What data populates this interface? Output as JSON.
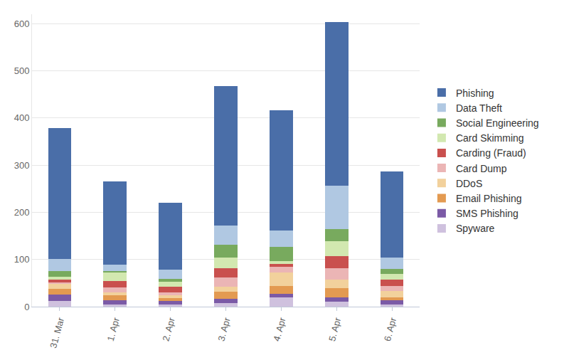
{
  "chart_data": {
    "type": "bar",
    "stacked": true,
    "grid": true,
    "legend": "right",
    "categories": [
      "31. Mar",
      "1. Apr",
      "2. Apr",
      "3. Apr",
      "4. Apr",
      "5. Apr",
      "6. Apr"
    ],
    "ylim": [
      0,
      620
    ],
    "yticks": [
      0,
      100,
      200,
      300,
      400,
      500,
      600
    ],
    "series": [
      {
        "name": "Spyware",
        "color": "#cfc1de",
        "values": [
          12,
          4,
          5,
          7,
          20,
          10,
          5
        ]
      },
      {
        "name": "SMS Phishing",
        "color": "#7b5aa6",
        "values": [
          13,
          10,
          7,
          10,
          7,
          10,
          9
        ]
      },
      {
        "name": "Email Phishing",
        "color": "#e39a51",
        "values": [
          13,
          10,
          6,
          15,
          17,
          19,
          6
        ]
      },
      {
        "name": "DDoS",
        "color": "#f2d19c",
        "values": [
          10,
          6,
          6,
          10,
          28,
          18,
          13
        ]
      },
      {
        "name": "Card Dump",
        "color": "#ebb5b5",
        "values": [
          4,
          10,
          6,
          20,
          13,
          24,
          11
        ]
      },
      {
        "name": "Carding (Fraud)",
        "color": "#c9504e",
        "values": [
          5,
          15,
          12,
          20,
          6,
          26,
          13
        ]
      },
      {
        "name": "Card Skimming",
        "color": "#d2e8b0",
        "values": [
          6,
          17,
          11,
          22,
          6,
          32,
          12
        ]
      },
      {
        "name": "Social Engineering",
        "color": "#78aa5e",
        "values": [
          13,
          4,
          6,
          27,
          29,
          25,
          11
        ]
      },
      {
        "name": "Data Theft",
        "color": "#b0c8e2",
        "values": [
          25,
          13,
          20,
          41,
          35,
          93,
          24
        ]
      },
      {
        "name": "Phishing",
        "color": "#4a6ea8",
        "values": [
          277,
          177,
          141,
          295,
          255,
          347,
          182
        ]
      }
    ]
  }
}
